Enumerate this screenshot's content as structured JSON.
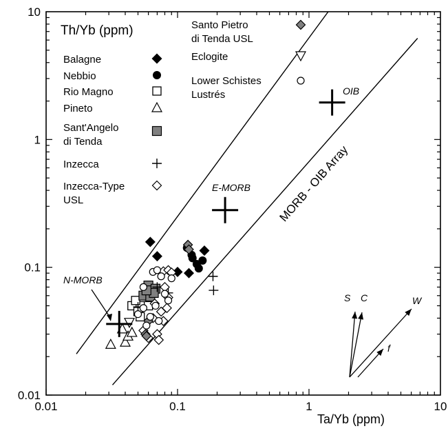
{
  "chart_data": {
    "type": "scatter",
    "xlabel": "Ta/Yb (ppm)",
    "ylabel": "Th/Yb (ppm)",
    "xscale": "log",
    "yscale": "log",
    "xlim": [
      0.01,
      10
    ],
    "ylim": [
      0.01,
      10
    ],
    "x_ticks": [
      "0.01",
      "0.1",
      "1",
      "10"
    ],
    "y_ticks": [
      "0.01",
      "0.1",
      "1",
      "10"
    ],
    "grid": false,
    "legend_placement": "top-left",
    "array_label": "MORB - OIB Array",
    "array_lines": [
      {
        "x": [
          0.017,
          1.4
        ],
        "y": [
          0.021,
          10
        ]
      },
      {
        "x": [
          0.032,
          6.7
        ],
        "y": [
          0.012,
          6.2
        ]
      }
    ],
    "references": [
      {
        "label": "N-MORB",
        "x": 0.036,
        "y": 0.036
      },
      {
        "label": "E-MORB",
        "x": 0.23,
        "y": 0.28
      },
      {
        "label": "OIB",
        "x": 1.5,
        "y": 1.95
      }
    ],
    "series": [
      {
        "name": "Balagne",
        "marker": "filled-diamond",
        "points": [
          [
            0.062,
            0.158
          ],
          [
            0.07,
            0.122
          ],
          [
            0.16,
            0.135
          ],
          [
            0.1,
            0.092
          ],
          [
            0.122,
            0.09
          ]
        ]
      },
      {
        "name": "Nebbio",
        "marker": "filled-circle",
        "points": [
          [
            0.128,
            0.125
          ],
          [
            0.14,
            0.106
          ],
          [
            0.155,
            0.113
          ],
          [
            0.145,
            0.098
          ],
          [
            0.13,
            0.118
          ],
          [
            0.118,
            0.142
          ]
        ]
      },
      {
        "name": "Rio Magno",
        "marker": "open-square",
        "points": [
          [
            0.045,
            0.05
          ],
          [
            0.05,
            0.045
          ],
          [
            0.055,
            0.058
          ],
          [
            0.06,
            0.05
          ],
          [
            0.052,
            0.041
          ],
          [
            0.048,
            0.055
          ]
        ]
      },
      {
        "name": "Pineto",
        "marker": "open-triangle",
        "points": [
          [
            0.031,
            0.025
          ],
          [
            0.04,
            0.026
          ],
          [
            0.042,
            0.029
          ],
          [
            0.038,
            0.033
          ],
          [
            0.045,
            0.031
          ]
        ]
      },
      {
        "name": "Sant'Angelo di Tenda",
        "marker": "gray-square",
        "points": [
          [
            0.06,
            0.072
          ],
          [
            0.068,
            0.068
          ],
          [
            0.055,
            0.06
          ],
          [
            0.062,
            0.059
          ],
          [
            0.066,
            0.063
          ],
          [
            0.058,
            0.066
          ]
        ]
      },
      {
        "name": "Inzecca",
        "marker": "plus",
        "points": [
          [
            0.186,
            0.085
          ],
          [
            0.188,
            0.066
          ],
          [
            0.085,
            0.063
          ],
          [
            0.05,
            0.049
          ],
          [
            0.07,
            0.07
          ]
        ]
      },
      {
        "name": "Inzecca-Type USL",
        "marker": "open-diamond",
        "points": [
          [
            0.078,
            0.093
          ],
          [
            0.085,
            0.095
          ],
          [
            0.08,
            0.07
          ],
          [
            0.085,
            0.058
          ],
          [
            0.075,
            0.045
          ],
          [
            0.065,
            0.04
          ],
          [
            0.055,
            0.032
          ],
          [
            0.07,
            0.03
          ],
          [
            0.06,
            0.028
          ],
          [
            0.072,
            0.027
          ],
          [
            0.083,
            0.048
          ],
          [
            0.078,
            0.038
          ],
          [
            0.09,
            0.091
          ],
          [
            0.067,
            0.052
          ]
        ]
      },
      {
        "name": "Santo Pietro di Tenda USL",
        "marker": "gray-diamond",
        "points": [
          [
            0.12,
            0.15
          ],
          [
            0.122,
            0.138
          ],
          [
            0.06,
            0.038
          ],
          [
            0.057,
            0.03
          ],
          [
            0.058,
            0.029
          ]
        ]
      },
      {
        "name": "Eclogite",
        "marker": "open-down-triangle",
        "points": [
          [
            0.043,
            0.037
          ]
        ]
      },
      {
        "name": "Lower Schistes Lustrés",
        "marker": "open-circle",
        "points": [
          [
            0.05,
            0.043
          ],
          [
            0.055,
            0.048
          ],
          [
            0.062,
            0.041
          ],
          [
            0.068,
            0.05
          ],
          [
            0.072,
            0.038
          ],
          [
            0.065,
            0.092
          ],
          [
            0.075,
            0.085
          ],
          [
            0.085,
            0.055
          ],
          [
            0.058,
            0.035
          ],
          [
            0.09,
            0.082
          ],
          [
            0.055,
            0.07
          ],
          [
            0.08,
            0.062
          ],
          [
            0.07,
            0.095
          ]
        ]
      }
    ],
    "process_vectors": [
      "S",
      "C",
      "W",
      "f"
    ]
  }
}
